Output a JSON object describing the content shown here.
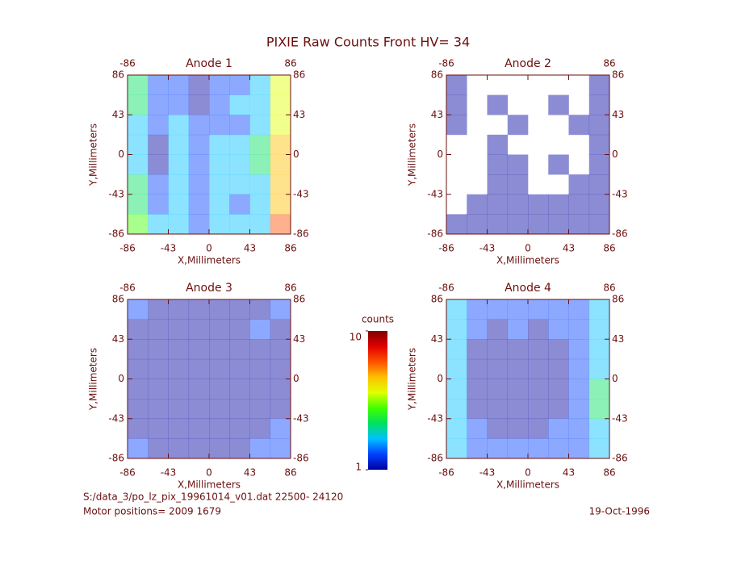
{
  "title": "PIXIE Raw Counts Front HV= 34",
  "footer": {
    "file": "S:/data_3/po_lz_pix_19961014_v01.dat   22500- 24120",
    "motor": "Motor positions= 2009 1679",
    "date": "19-Oct-1996"
  },
  "colorbar": {
    "label": "counts",
    "lim": [
      1,
      10
    ],
    "ticks": [
      1,
      10
    ],
    "colormap": [
      "#0000a0",
      "#0040ff",
      "#00c0ff",
      "#00e060",
      "#40ff00",
      "#e0ff00",
      "#ffc000",
      "#ff5000",
      "#e00000",
      "#800000"
    ]
  },
  "chart_data": [
    {
      "type": "heatmap",
      "title": "Anode 1",
      "xlabel": "X,Millimeters",
      "ylabel": "Y,Millimeters",
      "xlim": [
        -86,
        86
      ],
      "ylim": [
        -86,
        86
      ],
      "xticks": [
        -86,
        -43,
        0,
        43,
        86
      ],
      "yticks": [
        -86,
        -43,
        0,
        43,
        86
      ],
      "values": [
        [
          4,
          2,
          2,
          1,
          2,
          2,
          3,
          6
        ],
        [
          4,
          2,
          2,
          1,
          2,
          3,
          3,
          6
        ],
        [
          3,
          2,
          3,
          2,
          2,
          2,
          3,
          6
        ],
        [
          3,
          1,
          3,
          2,
          3,
          3,
          4,
          7
        ],
        [
          3,
          1,
          3,
          2,
          3,
          3,
          4,
          7
        ],
        [
          4,
          2,
          3,
          2,
          3,
          3,
          3,
          7
        ],
        [
          4,
          2,
          3,
          2,
          3,
          2,
          3,
          7
        ],
        [
          5,
          3,
          3,
          2,
          3,
          3,
          3,
          8
        ]
      ]
    },
    {
      "type": "heatmap",
      "title": "Anode 2",
      "xlabel": "X,Millimeters",
      "ylabel": "Y,Millimeters",
      "xlim": [
        -86,
        86
      ],
      "ylim": [
        -86,
        86
      ],
      "xticks": [
        -86,
        -43,
        0,
        43,
        86
      ],
      "yticks": [
        -86,
        -43,
        0,
        43,
        86
      ],
      "values": [
        [
          1,
          0,
          0,
          0,
          0,
          0,
          0,
          1
        ],
        [
          1,
          0,
          1,
          0,
          0,
          1,
          0,
          1
        ],
        [
          1,
          0,
          0,
          1,
          0,
          0,
          1,
          1
        ],
        [
          0,
          0,
          1,
          0,
          0,
          0,
          0,
          1
        ],
        [
          0,
          0,
          1,
          1,
          0,
          1,
          0,
          1
        ],
        [
          0,
          0,
          1,
          1,
          0,
          0,
          1,
          1
        ],
        [
          0,
          1,
          1,
          1,
          1,
          1,
          1,
          1
        ],
        [
          1,
          1,
          1,
          1,
          1,
          1,
          1,
          1
        ]
      ]
    },
    {
      "type": "heatmap",
      "title": "Anode 3",
      "xlabel": "X,Millimeters",
      "ylabel": "Y,Millimeters",
      "xlim": [
        -86,
        86
      ],
      "ylim": [
        -86,
        86
      ],
      "xticks": [
        -86,
        -43,
        0,
        43,
        86
      ],
      "yticks": [
        -86,
        -43,
        0,
        43,
        86
      ],
      "values": [
        [
          2,
          1,
          1,
          1,
          1,
          1,
          1,
          2
        ],
        [
          1,
          1,
          1,
          1,
          1,
          1,
          2,
          1
        ],
        [
          1,
          1,
          1,
          1,
          1,
          1,
          1,
          1
        ],
        [
          1,
          1,
          1,
          1,
          1,
          1,
          1,
          1
        ],
        [
          1,
          1,
          1,
          1,
          1,
          1,
          1,
          1
        ],
        [
          1,
          1,
          1,
          1,
          1,
          1,
          1,
          1
        ],
        [
          1,
          1,
          1,
          1,
          1,
          1,
          1,
          2
        ],
        [
          2,
          1,
          1,
          1,
          1,
          1,
          2,
          2
        ]
      ]
    },
    {
      "type": "heatmap",
      "title": "Anode 4",
      "xlabel": "X,Millimeters",
      "ylabel": "Y,Millimeters",
      "xlim": [
        -86,
        86
      ],
      "ylim": [
        -86,
        86
      ],
      "xticks": [
        -86,
        -43,
        0,
        43,
        86
      ],
      "yticks": [
        -86,
        -43,
        0,
        43,
        86
      ],
      "values": [
        [
          3,
          2,
          2,
          2,
          2,
          2,
          2,
          3
        ],
        [
          3,
          2,
          1,
          2,
          1,
          2,
          2,
          3
        ],
        [
          3,
          1,
          1,
          1,
          1,
          1,
          2,
          3
        ],
        [
          3,
          1,
          1,
          1,
          1,
          1,
          2,
          3
        ],
        [
          3,
          1,
          1,
          1,
          1,
          1,
          2,
          4
        ],
        [
          3,
          1,
          1,
          1,
          1,
          1,
          2,
          4
        ],
        [
          3,
          2,
          1,
          1,
          1,
          2,
          2,
          3
        ],
        [
          3,
          2,
          2,
          2,
          2,
          2,
          2,
          3
        ]
      ]
    }
  ]
}
